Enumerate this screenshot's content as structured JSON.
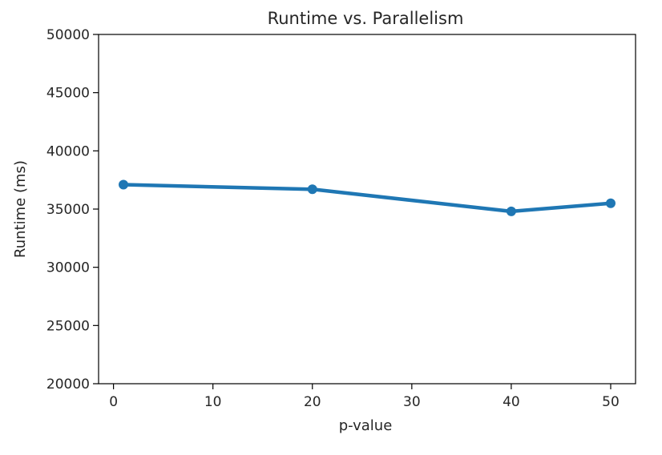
{
  "chart_data": {
    "type": "line",
    "title": "Runtime vs. Parallelism",
    "xlabel": "p-value",
    "ylabel": "Runtime (ms)",
    "xlim": [
      -1.5,
      52.5
    ],
    "ylim": [
      20000,
      50000
    ],
    "xticks": [
      0,
      10,
      20,
      30,
      40,
      50
    ],
    "yticks": [
      20000,
      25000,
      30000,
      35000,
      40000,
      45000,
      50000
    ],
    "grid": false,
    "series": [
      {
        "color": "#1f77b4",
        "x": [
          1,
          20,
          40,
          50
        ],
        "y": [
          37100,
          36700,
          34800,
          35500
        ]
      }
    ]
  }
}
